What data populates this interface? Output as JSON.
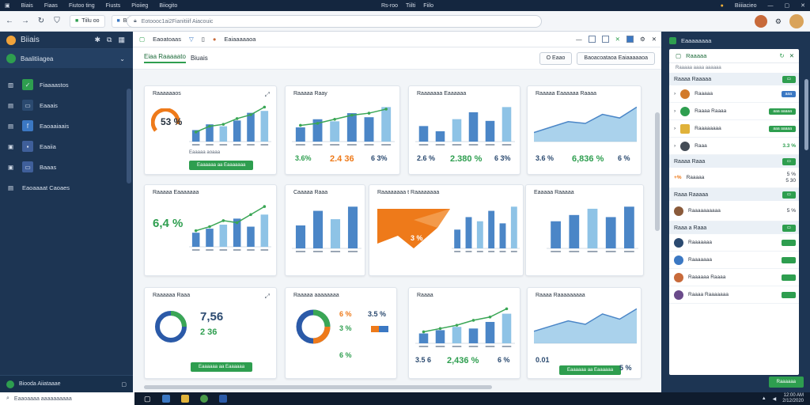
{
  "window": {
    "menu": [
      "Biais",
      "Fiaas",
      "Fiutoo ting",
      "Fiusts",
      "Pioiieg",
      "Biiogito"
    ],
    "center": [
      "Rs-roo",
      "Tiilti",
      "Fiilo"
    ],
    "right": [
      "Biiiiacieo"
    ]
  },
  "browser": {
    "tab_label": "Tiilu oo",
    "tab2_label": "Biitino",
    "address": "Eotoooc1ai2Fianitiiif Aiacouic"
  },
  "sidebar": {
    "brand": "Biiais",
    "workspace": "Baalitiiagea",
    "items": [
      {
        "label": "Fiaaaastos",
        "icon": "grid-icon",
        "color": "#2e9e4f"
      },
      {
        "label": "Eaaais",
        "icon": "chart-icon",
        "color": "#2b4a70"
      },
      {
        "label": "Eaoaaiaais",
        "icon": "file-icon",
        "color": "#3b78c3"
      },
      {
        "label": "Eaaiia",
        "icon": "image-icon",
        "color": "#3f5f9a"
      },
      {
        "label": "Baaas",
        "icon": "folder-icon",
        "color": "#3f5f9a"
      },
      {
        "label": "Eaoaaaat Caoaes",
        "icon": "briefcase-icon",
        "color": "#2b4a70"
      }
    ],
    "footer": "Biooda Aiiataaae"
  },
  "main": {
    "tabs": [
      "Eaoatoaas",
      "Eaiaaaaaoa"
    ],
    "header_tabs": [
      "Eiaa Raaaaato",
      "Biuais"
    ],
    "header_buttons": [
      "O Eaao",
      "Baoacoataoa Eaiaaaaaoa"
    ]
  },
  "cards": {
    "c1": {
      "title": "Raaaaaaos",
      "big": "53 %",
      "stat": "Eaaaaa aoaaa",
      "button": "Eaaaaaa aa Eaaaaaaa"
    },
    "c2": {
      "title": "Raaaaa Raay",
      "n1": "3.6%",
      "n2": "2.4 36",
      "n3": "6 3%"
    },
    "c3": {
      "title": "Raaaaaaa Eaaaaaa",
      "n1": "2.6 %",
      "n2": "2.380 %",
      "n3": "6 3%"
    },
    "c4": {
      "title": "Raaaaa Eaaaaaa Raaaa",
      "n1": "3.6 %",
      "n2": "6,836 %",
      "n3": "6 %"
    },
    "c5": {
      "title": "Raaaaa Eaaaaaaa",
      "big": "6,4 %"
    },
    "c6": {
      "title": "Caaaaa Raaa"
    },
    "c7": {
      "title": "Raaaaaaaa t Raaaaaaaa",
      "pct": "3 %"
    },
    "c8": {
      "title": "Eaaaaa Raaaaa"
    },
    "c9": {
      "title": "Raaaaaa Raaa",
      "big": "7,56",
      "sub": "2 36",
      "button": "Eaaaaaa aa Eaaaaaa"
    },
    "c10": {
      "title": "Raaaaa aaaaaaaa",
      "n1": "6 %",
      "n2": "3.5 %",
      "n3": "3 %",
      "n4": "6 %"
    },
    "c11": {
      "title": "Raaaa",
      "n1": "3.5 6",
      "n2": "2,436 %",
      "n3": "6 %"
    },
    "c12": {
      "title": "Raaaa Raaaaaaaaa",
      "n1": "0.01",
      "button": "Eaaaaaa aa Eaaaaaa",
      "n2": "5 %"
    }
  },
  "chart_data": [
    {
      "type": "bar",
      "values": [
        12,
        18,
        16,
        22,
        30,
        32
      ],
      "line": [
        10,
        16,
        18,
        24,
        28,
        36
      ]
    },
    {
      "type": "bar",
      "values": [
        14,
        22,
        20,
        28,
        24,
        34
      ],
      "line": [
        16,
        18,
        22,
        26,
        28,
        32
      ]
    },
    {
      "type": "bar",
      "values": [
        18,
        12,
        26,
        34,
        24,
        40
      ]
    },
    {
      "type": "area",
      "values": [
        10,
        16,
        22,
        20,
        30,
        26,
        38
      ]
    },
    {
      "type": "bar",
      "values": [
        14,
        18,
        22,
        28,
        20,
        32
      ],
      "line": [
        16,
        20,
        26,
        24,
        32,
        40
      ]
    },
    {
      "type": "bar",
      "values": [
        22,
        36,
        28,
        40
      ]
    },
    {
      "type": "bar",
      "values": [
        18,
        30,
        26,
        36,
        24,
        40
      ]
    },
    {
      "type": "bar",
      "values": [
        26,
        32,
        38,
        30,
        40
      ]
    },
    {
      "type": "bar",
      "values": [
        12,
        16,
        20,
        18,
        26,
        36
      ],
      "line": [
        14,
        18,
        22,
        28,
        32,
        42
      ]
    },
    {
      "type": "area",
      "values": [
        14,
        20,
        26,
        22,
        34,
        28,
        40
      ]
    }
  ],
  "rpanel": {
    "header": "Eaaaaaaaa",
    "title": "Raaaaa",
    "subtitle": "Raaaaa aaaa aaaaaa",
    "sections": [
      {
        "title": "Raaaa Raaaaa",
        "rows": [
          {
            "label": "Raaaaa",
            "tag": "aaa"
          },
          {
            "label": "Raaaa Raaaa",
            "tag": "aaa aaaaa"
          },
          {
            "label": "Raaaaaaaa",
            "tag": "aaa aaaaa"
          },
          {
            "label": "Raaa",
            "value": "3.3 %"
          }
        ]
      },
      {
        "title": "Raaaa Raaa",
        "rows": [
          {
            "label": "Raaaaa",
            "value": "5 %",
            "value2": "5 30"
          }
        ]
      },
      {
        "title": "Raaa Raaaaa",
        "rows": [
          {
            "label": "Raaaaaaaaaa",
            "value": "5 %"
          }
        ]
      },
      {
        "title": "Raaa a Raaa",
        "rows": [
          {
            "label": "Raaaaaaa"
          },
          {
            "label": "Raaaaaaa"
          },
          {
            "label": "Raaaaaa Raaaa"
          },
          {
            "label": "Raaaa Raaaaaaa"
          }
        ]
      }
    ],
    "footer_button": "Raaaaaa"
  },
  "taskbar": {
    "search": "Eaaoaaaa aaaaaaaaaa",
    "time": "12:00 AM",
    "date": "2/12/2020"
  },
  "colors": {
    "accent": "#2e9e4f",
    "bar": "#4b86c7",
    "bar_light": "#8ec3e6",
    "line": "#3aa655",
    "orange": "#ee7a1a"
  }
}
